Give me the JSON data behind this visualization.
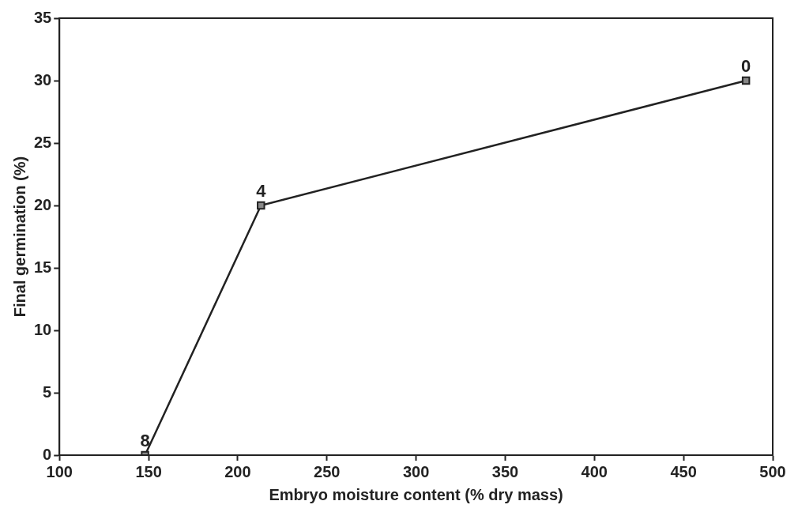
{
  "chart_data": {
    "type": "line",
    "xlabel": "Embryo moisture content (% dry mass)",
    "ylabel": "Final germination (%)",
    "x": [
      148,
      213,
      485
    ],
    "series": [
      {
        "color": "#222222",
        "values": [
          0,
          20,
          30
        ]
      }
    ],
    "marker": "square",
    "line_style": "solid",
    "xlim": [
      100,
      500
    ],
    "xticks": [
      100,
      150,
      200,
      250,
      300,
      350,
      400,
      450,
      500
    ],
    "ylim": [
      0,
      35
    ],
    "yticks": [
      0,
      5,
      10,
      15,
      20,
      25,
      30,
      35
    ],
    "annotations": [
      {
        "text": "8",
        "x": 148,
        "y": 0
      },
      {
        "text": "4",
        "x": 213,
        "y": 20
      },
      {
        "text": "0",
        "x": 485,
        "y": 30
      }
    ]
  }
}
